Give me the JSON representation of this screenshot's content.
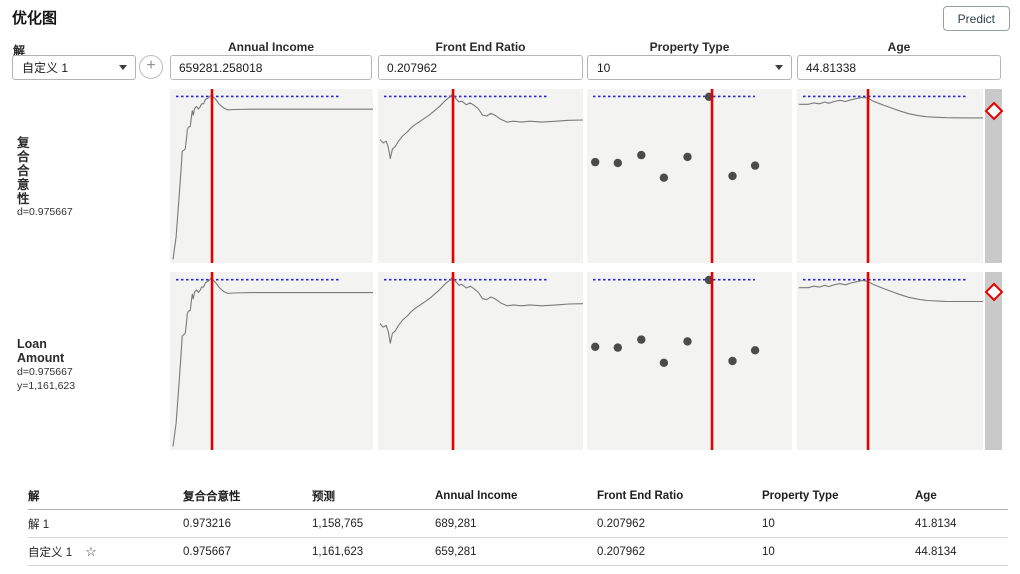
{
  "title": "优化图",
  "predict_button": "Predict",
  "solution": {
    "label": "解",
    "selected": "自定义 1"
  },
  "factors": [
    {
      "name": "Annual Income",
      "value": "659281.258018",
      "control": "input"
    },
    {
      "name": "Front End Ratio",
      "value": "0.207962",
      "control": "input"
    },
    {
      "name": "Property Type",
      "value": "10",
      "control": "select"
    },
    {
      "name": "Age",
      "value": "44.81338",
      "control": "input"
    }
  ],
  "responses": [
    {
      "label_text": "复\n合\n合\n意\n性",
      "d_label": "d=0.975667",
      "y_label": ""
    },
    {
      "label_text": "Loan\nAmount",
      "d_label": "d=0.975667",
      "y_label": "y=1,161,623"
    }
  ],
  "chart_data": {
    "type": "line",
    "description": "Prediction profiler: each row shows a response (复合合意性 desirability, Loan Amount) traced against each factor; red vertical crosshair marks current factor setting; blue dotted line marks the maximum desirability level; x/y are normalized panel fractions (y=0 is top).",
    "rows": [
      "复合合意性",
      "Loan Amount"
    ],
    "reference_y": 0.043,
    "colors": {
      "crosshair": "#e60000",
      "reference": "#2424dc",
      "trace": "#7a7a7a",
      "marker": "#4b4b4b",
      "panel_bg": "#f3f3f2",
      "strip": "#c9c9c9"
    },
    "panels": [
      {
        "factor": "Annual Income",
        "kind": "line",
        "crosshair_x": 0.207,
        "points": [
          [
            0.015,
            0.98
          ],
          [
            0.03,
            0.85
          ],
          [
            0.045,
            0.62
          ],
          [
            0.055,
            0.45
          ],
          [
            0.06,
            0.36
          ],
          [
            0.075,
            0.345
          ],
          [
            0.08,
            0.3
          ],
          [
            0.085,
            0.235
          ],
          [
            0.09,
            0.22
          ],
          [
            0.1,
            0.215
          ],
          [
            0.105,
            0.165
          ],
          [
            0.11,
            0.125
          ],
          [
            0.115,
            0.15
          ],
          [
            0.12,
            0.115
          ],
          [
            0.13,
            0.1
          ],
          [
            0.14,
            0.115
          ],
          [
            0.15,
            0.1
          ],
          [
            0.155,
            0.085
          ],
          [
            0.165,
            0.085
          ],
          [
            0.175,
            0.06
          ],
          [
            0.19,
            0.05
          ],
          [
            0.2,
            0.038
          ],
          [
            0.21,
            0.042
          ],
          [
            0.225,
            0.06
          ],
          [
            0.245,
            0.09
          ],
          [
            0.265,
            0.11
          ],
          [
            0.285,
            0.12
          ],
          [
            0.31,
            0.118
          ],
          [
            0.4,
            0.116
          ],
          [
            0.6,
            0.116
          ],
          [
            0.8,
            0.116
          ],
          [
            1.0,
            0.116
          ]
        ]
      },
      {
        "factor": "Front End Ratio",
        "kind": "line",
        "crosshair_x": 0.366,
        "points": [
          [
            0.01,
            0.29
          ],
          [
            0.025,
            0.31
          ],
          [
            0.04,
            0.3
          ],
          [
            0.05,
            0.335
          ],
          [
            0.06,
            0.4
          ],
          [
            0.07,
            0.345
          ],
          [
            0.085,
            0.33
          ],
          [
            0.1,
            0.3
          ],
          [
            0.12,
            0.27
          ],
          [
            0.14,
            0.25
          ],
          [
            0.16,
            0.225
          ],
          [
            0.18,
            0.205
          ],
          [
            0.2,
            0.19
          ],
          [
            0.225,
            0.17
          ],
          [
            0.25,
            0.15
          ],
          [
            0.275,
            0.125
          ],
          [
            0.3,
            0.1
          ],
          [
            0.325,
            0.07
          ],
          [
            0.35,
            0.045
          ],
          [
            0.365,
            0.028
          ],
          [
            0.38,
            0.055
          ],
          [
            0.395,
            0.075
          ],
          [
            0.41,
            0.07
          ],
          [
            0.43,
            0.09
          ],
          [
            0.45,
            0.08
          ],
          [
            0.47,
            0.095
          ],
          [
            0.49,
            0.115
          ],
          [
            0.51,
            0.15
          ],
          [
            0.53,
            0.155
          ],
          [
            0.55,
            0.14
          ],
          [
            0.57,
            0.15
          ],
          [
            0.6,
            0.175
          ],
          [
            0.63,
            0.19
          ],
          [
            0.66,
            0.185
          ],
          [
            0.7,
            0.19
          ],
          [
            0.74,
            0.185
          ],
          [
            0.8,
            0.19
          ],
          [
            0.87,
            0.185
          ],
          [
            0.93,
            0.18
          ],
          [
            1.0,
            0.178
          ]
        ]
      },
      {
        "factor": "Property Type",
        "kind": "scatter",
        "crosshair_x": 0.61,
        "points": [
          [
            0.04,
            0.42
          ],
          [
            0.15,
            0.425
          ],
          [
            0.265,
            0.38
          ],
          [
            0.375,
            0.51
          ],
          [
            0.49,
            0.39
          ],
          [
            0.595,
            0.045
          ],
          [
            0.71,
            0.5
          ],
          [
            0.82,
            0.44
          ]
        ]
      },
      {
        "factor": "Age",
        "kind": "line",
        "crosshair_x": 0.382,
        "points": [
          [
            0.01,
            0.088
          ],
          [
            0.06,
            0.088
          ],
          [
            0.09,
            0.08
          ],
          [
            0.12,
            0.085
          ],
          [
            0.15,
            0.075
          ],
          [
            0.17,
            0.082
          ],
          [
            0.2,
            0.072
          ],
          [
            0.23,
            0.065
          ],
          [
            0.26,
            0.072
          ],
          [
            0.29,
            0.062
          ],
          [
            0.32,
            0.055
          ],
          [
            0.35,
            0.048
          ],
          [
            0.38,
            0.052
          ],
          [
            0.41,
            0.07
          ],
          [
            0.44,
            0.082
          ],
          [
            0.47,
            0.095
          ],
          [
            0.51,
            0.11
          ],
          [
            0.55,
            0.125
          ],
          [
            0.6,
            0.142
          ],
          [
            0.65,
            0.153
          ],
          [
            0.7,
            0.16
          ],
          [
            0.8,
            0.165
          ],
          [
            0.9,
            0.166
          ],
          [
            1.0,
            0.166
          ]
        ]
      }
    ]
  },
  "table": {
    "headers": [
      "解",
      "复合合意性",
      "预测",
      "Annual Income",
      "Front End Ratio",
      "Property Type",
      "Age"
    ],
    "star_icon": "☆",
    "rows": [
      {
        "starred": false,
        "cells": [
          "解 1",
          "0.973216",
          "1,158,765",
          "689,281",
          "0.207962",
          "10",
          "41.8134"
        ]
      },
      {
        "starred": true,
        "cells": [
          "自定义 1",
          "0.975667",
          "1,161,623",
          "659,281",
          "0.207962",
          "10",
          "44.8134"
        ]
      }
    ]
  }
}
